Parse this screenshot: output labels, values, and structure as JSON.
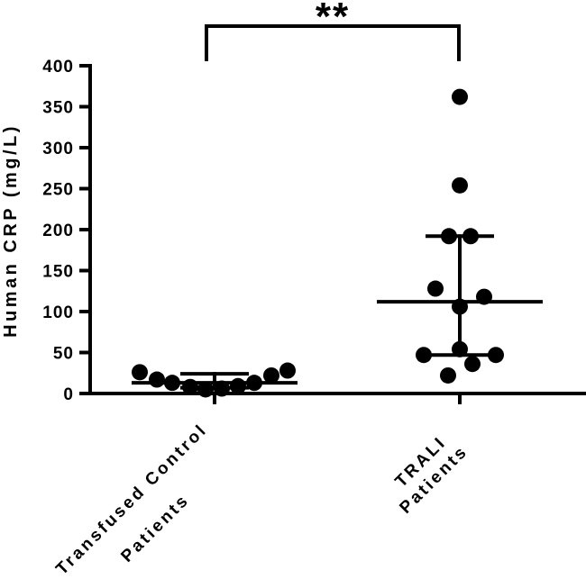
{
  "chart_data": {
    "type": "scatter",
    "ylabel": "Human CRP (mg/L)",
    "ylim": [
      0,
      400
    ],
    "yticks": [
      "0",
      "50",
      "100",
      "150",
      "200",
      "250",
      "300",
      "350",
      "400"
    ],
    "categories": [
      {
        "lines": [
          "Transfused Control",
          "Patients"
        ]
      },
      {
        "lines": [
          "TRALI",
          "Patients"
        ]
      }
    ],
    "series": [
      {
        "values": [
          26,
          17,
          13,
          8,
          5,
          6,
          9,
          13,
          22,
          28
        ],
        "median": 13,
        "iqr": [
          7,
          24
        ]
      },
      {
        "values": [
          362,
          254,
          192,
          192,
          128,
          118,
          106,
          54,
          47,
          47,
          36,
          22
        ],
        "median": 112,
        "iqr": [
          47,
          192
        ]
      }
    ],
    "significance": {
      "label": "**",
      "between": [
        0,
        1
      ]
    },
    "grid": false,
    "legend": "none"
  }
}
